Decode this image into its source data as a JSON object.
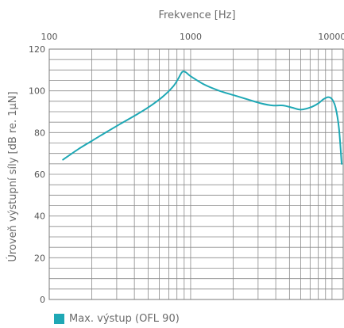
{
  "chart_data": {
    "type": "line",
    "xlabel": "Frekvence [Hz]",
    "ylabel": "Úroveň výstupní síly [dB re. 1µN]",
    "x_scale": "log",
    "xlim": [
      100,
      12000
    ],
    "ylim": [
      0,
      120
    ],
    "x_ticks": [
      100,
      1000,
      10000
    ],
    "x_tick_labels": [
      "100",
      "1000",
      "10000"
    ],
    "y_ticks": [
      0,
      20,
      40,
      60,
      80,
      100,
      120
    ],
    "y_tick_labels": [
      "0",
      "20",
      "40",
      "60",
      "80",
      "100",
      "120"
    ],
    "grid": true,
    "legend_position": "bottom-left",
    "series": [
      {
        "name": "Max. výstup (OFL 90)",
        "color": "#1fa8b5",
        "x": [
          125,
          160,
          200,
          250,
          315,
          400,
          500,
          630,
          750,
          820,
          870,
          920,
          1000,
          1250,
          1600,
          2000,
          2500,
          3150,
          3800,
          4500,
          5200,
          6000,
          7000,
          8000,
          8700,
          9400,
          10000,
          10600,
          11200,
          11700
        ],
        "y": [
          67,
          72,
          76,
          80,
          84,
          88,
          92,
          97,
          102,
          106,
          109,
          109,
          107,
          103,
          100,
          98,
          96,
          94,
          93,
          93,
          92,
          91,
          92,
          94,
          96,
          97,
          96,
          92,
          82,
          65
        ]
      }
    ]
  }
}
